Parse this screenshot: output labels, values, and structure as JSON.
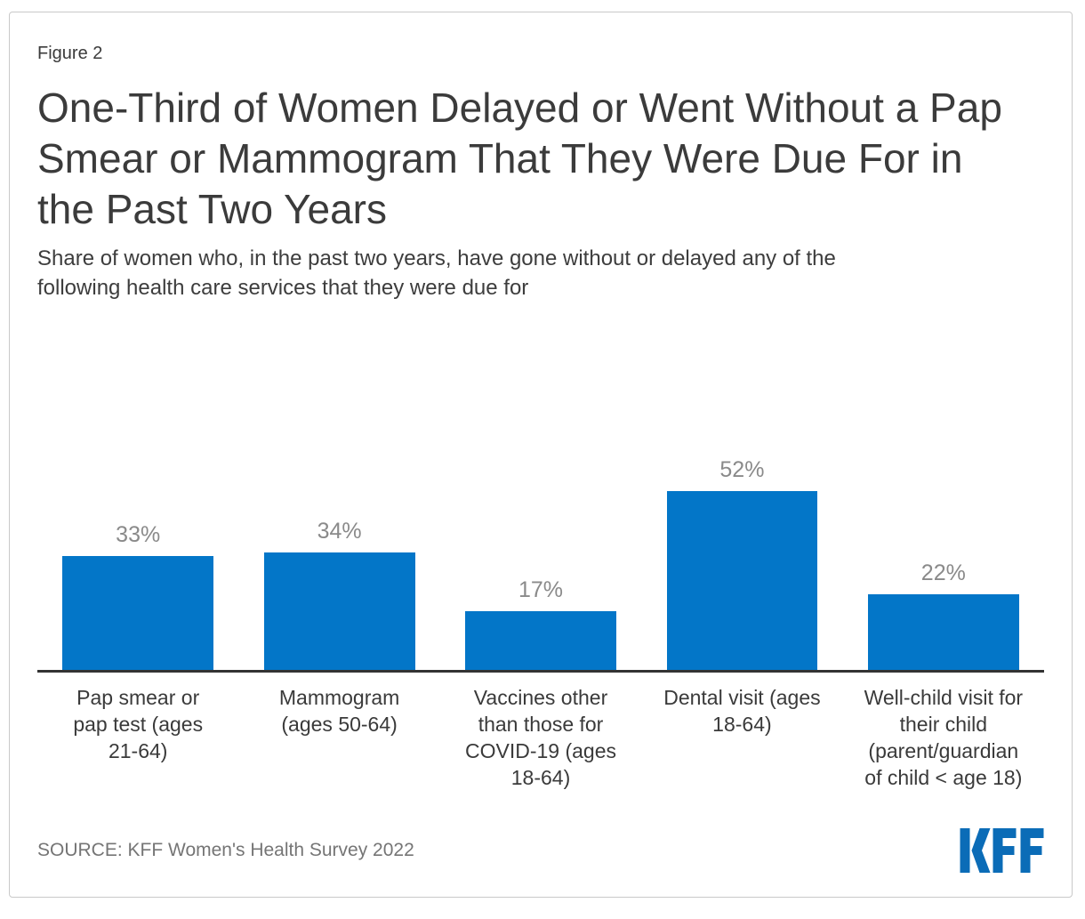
{
  "figure_label": "Figure 2",
  "title": "One-Third of Women Delayed or Went Without a Pap\nSmear or Mammogram That They Were Due For in\nthe Past Two Years",
  "subtitle": "Share of women who, in the past two years, have gone without or delayed any of the\nfollowing health care services that they were due for",
  "source": "SOURCE: KFF Women's Health Survey 2022",
  "logo_text": "KFF",
  "colors": {
    "bar": "#0376C8",
    "logo_blue": "#0B6CB7",
    "value_label": "#8A8A8A",
    "axis_line": "#333333",
    "card_border": "#C9C9C9",
    "title_text": "#3B3B3B",
    "category_text": "#3A3A3A",
    "source_text": "#757575"
  },
  "chart_data": {
    "type": "bar",
    "title": "One-Third of Women Delayed or Went Without a Pap Smear or Mammogram That They Were Due For in the Past Two Years",
    "subtitle": "Share of women who, in the past two years, have gone without or delayed any of the following health care services that they were due for",
    "categories": [
      "Pap smear or\npap test (ages\n21-64)",
      "Mammogram\n(ages 50-64)",
      "Vaccines other\nthan those for\nCOVID-19 (ages\n18-64)",
      "Dental visit (ages\n18-64)",
      "Well-child visit for\ntheir child\n(parent/guardian\nof child < age 18)"
    ],
    "values": [
      33,
      34,
      17,
      52,
      22
    ],
    "value_labels": [
      "33%",
      "34%",
      "17%",
      "52%",
      "22%"
    ],
    "ylim": [
      0,
      60
    ],
    "xlabel": "",
    "ylabel": "",
    "grid": false,
    "legend": false,
    "value_label_position": "above-bar",
    "source": "KFF Women's Health Survey 2022"
  }
}
